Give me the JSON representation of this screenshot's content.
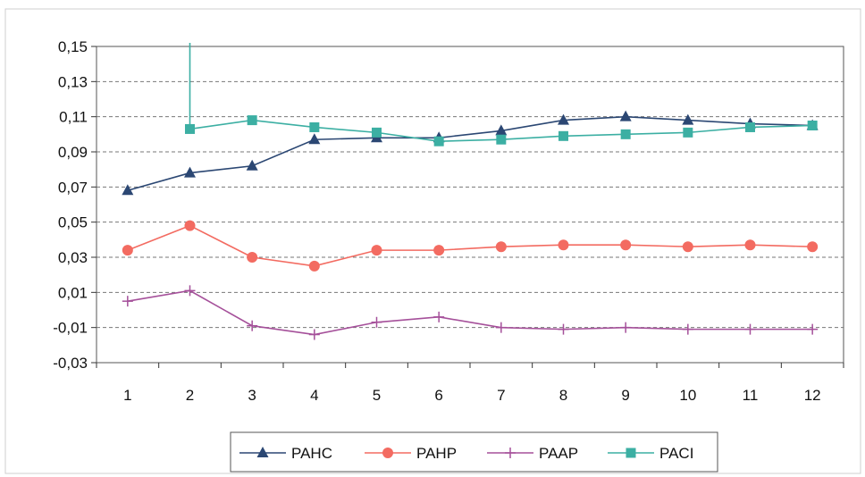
{
  "chart_data": {
    "type": "line",
    "categories": [
      "1",
      "2",
      "3",
      "4",
      "5",
      "6",
      "7",
      "8",
      "9",
      "10",
      "11",
      "12"
    ],
    "ylim": [
      -0.03,
      0.15
    ],
    "yticks": [
      "-0,03",
      "-0,01",
      "0,01",
      "0,03",
      "0,05",
      "0,07",
      "0,09",
      "0,11",
      "0,13",
      "0,15"
    ],
    "ytick_values": [
      -0.03,
      -0.01,
      0.01,
      0.03,
      0.05,
      0.07,
      0.09,
      0.11,
      0.13,
      0.15
    ],
    "grid": "horizontal dashed",
    "legend_position": "bottom",
    "series": [
      {
        "name": "PAHC",
        "color": "#2b4773",
        "marker": "triangle",
        "values": [
          0.068,
          0.078,
          0.082,
          0.097,
          0.098,
          0.098,
          0.102,
          0.108,
          0.11,
          0.108,
          0.106,
          0.105
        ]
      },
      {
        "name": "PAHP",
        "color": "#f36b61",
        "marker": "circle",
        "values": [
          0.034,
          0.048,
          0.03,
          0.025,
          0.034,
          0.034,
          0.036,
          0.037,
          0.037,
          0.036,
          0.037,
          0.036
        ]
      },
      {
        "name": "PAAP",
        "color": "#a5509a",
        "marker": "plus",
        "values": [
          0.005,
          0.011,
          -0.009,
          -0.014,
          -0.007,
          -0.004,
          -0.01,
          -0.011,
          -0.01,
          -0.011,
          -0.011,
          -0.011
        ]
      },
      {
        "name": "PACI",
        "color": "#3cafa3",
        "marker": "square",
        "values": [
          null,
          0.103,
          0.108,
          0.104,
          0.101,
          0.096,
          0.097,
          0.099,
          0.1,
          0.101,
          0.104,
          0.105
        ],
        "note_offscale_start": true
      }
    ]
  }
}
